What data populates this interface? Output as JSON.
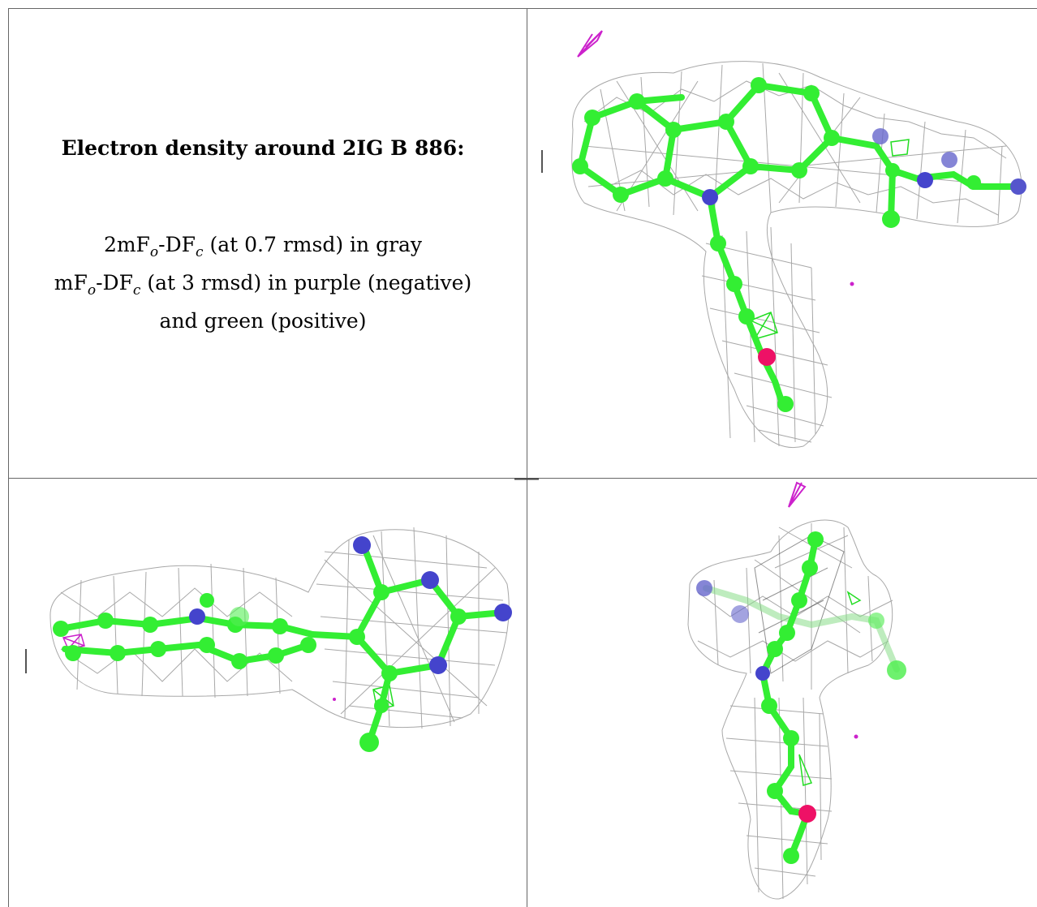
{
  "caption": {
    "title": "Electron density around 2IG B 886:",
    "line1": {
      "a": "2mF",
      "sub1": "o",
      "b": "-DF",
      "sub2": "c",
      "c": " (at 0.7 rmsd) in gray"
    },
    "line2": {
      "a": "mF",
      "sub1": "o",
      "b": "-DF",
      "sub2": "c",
      "c": " (at 3 rmsd) in purple (negative)"
    },
    "line3": "and green (positive)"
  },
  "colors": {
    "carbon": "#33ee33",
    "nitrogen": "#4444cc",
    "oxygen": "#ee1166",
    "mesh_2fofc": "#909090",
    "mesh_negative": "#cc22cc",
    "mesh_positive": "#22dd22",
    "grid_lines": "#666666"
  },
  "panels": [
    {
      "id": "caption-panel"
    },
    {
      "id": "view-top-right"
    },
    {
      "id": "view-bottom-left"
    },
    {
      "id": "view-bottom-right"
    }
  ]
}
